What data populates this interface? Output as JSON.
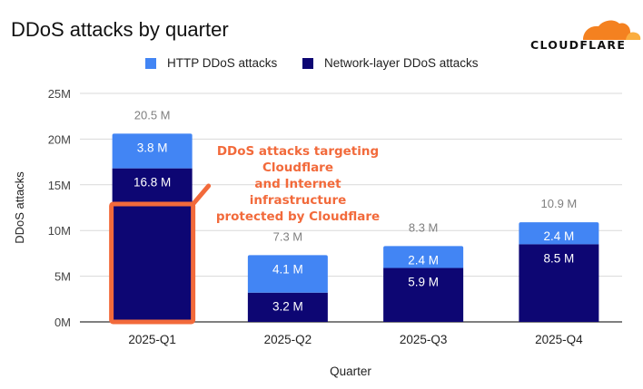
{
  "header": {
    "title": "DDoS attacks by quarter",
    "brand": "CLOUDFLARE"
  },
  "colors": {
    "http": "#4285f4",
    "network": "#0d0673",
    "annotation": "#f26a3b",
    "grid": "#d9d9d9",
    "axis_text": "#444444",
    "total_label": "#7f7f7f",
    "logo_orange": "#f48120",
    "logo_light": "#faad3f"
  },
  "annotation": {
    "lines": [
      "DDoS attacks targeting Cloudflare",
      "and Internet infrastructure",
      "protected by Cloudflare"
    ],
    "value_millions": 12.9,
    "target_category": "2025-Q1"
  },
  "chart_data": {
    "type": "bar",
    "stacked": true,
    "title": "DDoS attacks by quarter",
    "xlabel": "Quarter",
    "ylabel": "DDoS attacks",
    "categories": [
      "2025-Q1",
      "2025-Q2",
      "2025-Q3",
      "2025-Q4"
    ],
    "series": [
      {
        "name": "Network-layer DDoS attacks",
        "values": [
          16.8,
          3.2,
          5.9,
          8.5
        ],
        "labels": [
          "16.8 M",
          "3.2 M",
          "5.9 M",
          "8.5 M"
        ]
      },
      {
        "name": "HTTP DDoS attacks",
        "values": [
          3.8,
          4.1,
          2.4,
          2.4
        ],
        "labels": [
          "3.8 M",
          "4.1 M",
          "2.4 M",
          "2.4 M"
        ]
      }
    ],
    "totals": [
      20.5,
      7.3,
      8.3,
      10.9
    ],
    "total_labels": [
      "20.5 M",
      "7.3 M",
      "8.3 M",
      "10.9 M"
    ],
    "ylim": [
      0,
      25
    ],
    "yticks": [
      0,
      5,
      10,
      15,
      20,
      25
    ],
    "ytick_labels": [
      "0M",
      "5M",
      "10M",
      "15M",
      "20M",
      "25M"
    ],
    "unit": "millions",
    "legend": {
      "position": "top",
      "entries": [
        "HTTP DDoS attacks",
        "Network-layer DDoS attacks"
      ]
    },
    "grid": true
  }
}
